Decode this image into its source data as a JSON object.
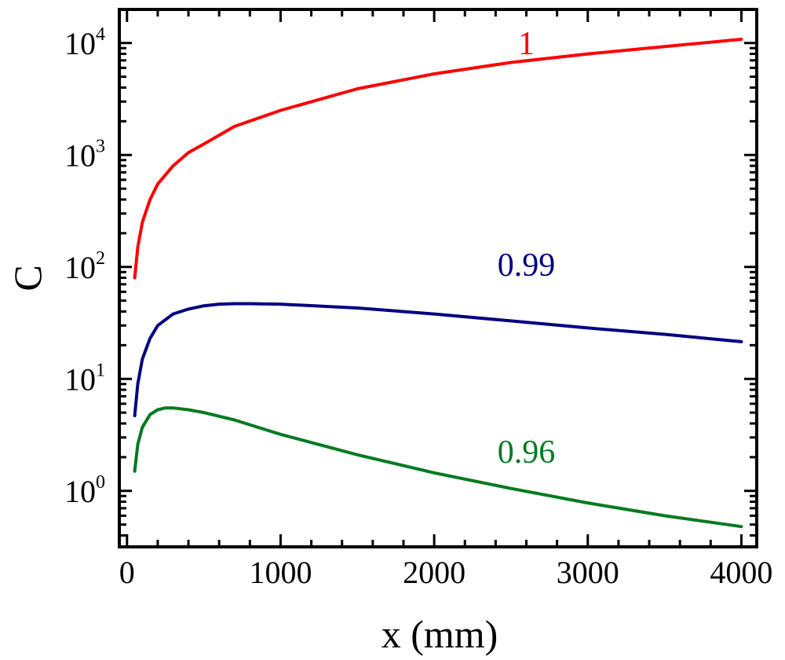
{
  "chart_data": {
    "type": "line",
    "title": "",
    "xlabel": "x (mm)",
    "ylabel": "C",
    "xlim": [
      -50,
      4100
    ],
    "ylim_log10": [
      -0.5,
      4.3
    ],
    "y_scale": "log",
    "x_ticks": [
      0,
      1000,
      2000,
      3000,
      4000
    ],
    "y_ticks": [
      {
        "exp": 0,
        "base": "10",
        "sup": "0"
      },
      {
        "exp": 1,
        "base": "10",
        "sup": "1"
      },
      {
        "exp": 2,
        "base": "10",
        "sup": "2"
      },
      {
        "exp": 3,
        "base": "10",
        "sup": "3"
      },
      {
        "exp": 4,
        "base": "10",
        "sup": "4"
      }
    ],
    "grid": false,
    "series": [
      {
        "name": "1",
        "color": "#ff0000",
        "label_at": [
          2600,
          3.9
        ],
        "x": [
          50,
          70,
          100,
          150,
          200,
          300,
          400,
          500,
          700,
          1000,
          1500,
          2000,
          2500,
          3000,
          3500,
          4000
        ],
        "y": [
          80,
          150,
          250,
          400,
          550,
          800,
          1050,
          1250,
          1800,
          2500,
          3900,
          5300,
          6700,
          8000,
          9300,
          10800
        ]
      },
      {
        "name": "0.99",
        "color": "#000080",
        "label_at": [
          2600,
          1.92
        ],
        "x": [
          50,
          70,
          100,
          150,
          200,
          300,
          400,
          500,
          600,
          700,
          800,
          1000,
          1500,
          2000,
          2500,
          3000,
          3500,
          4000
        ],
        "y": [
          4.7,
          9,
          15,
          23,
          30,
          38,
          42,
          45,
          46.5,
          47,
          47,
          46.5,
          43,
          38,
          33,
          28.5,
          25,
          21.5
        ]
      },
      {
        "name": "0.96",
        "color": "#007a20",
        "label_at": [
          2600,
          0.25
        ],
        "x": [
          50,
          70,
          100,
          150,
          200,
          250,
          300,
          400,
          500,
          700,
          1000,
          1500,
          2000,
          2500,
          3000,
          3500,
          4000
        ],
        "y": [
          1.5,
          2.6,
          3.7,
          4.8,
          5.3,
          5.5,
          5.5,
          5.3,
          5.0,
          4.3,
          3.2,
          2.1,
          1.45,
          1.05,
          0.78,
          0.6,
          0.48
        ]
      }
    ]
  }
}
